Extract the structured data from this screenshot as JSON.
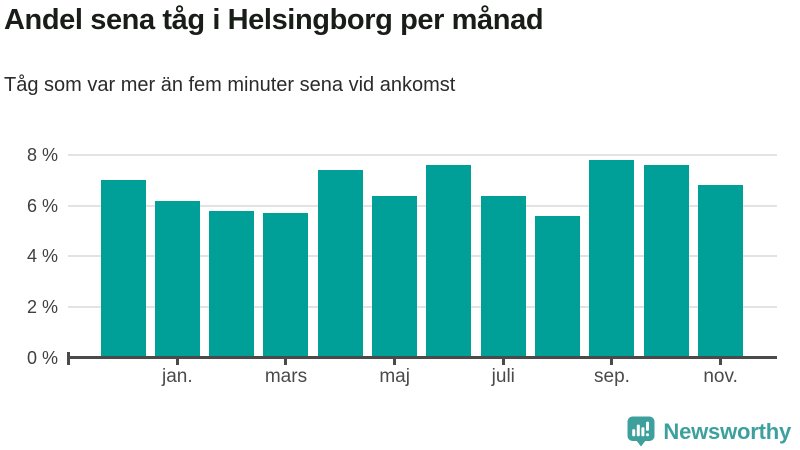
{
  "header": {
    "title": "Andel sena tåg i Helsingborg per månad",
    "subtitle": "Tåg som var mer än fem minuter sena vid ankomst"
  },
  "chart_data": {
    "type": "bar",
    "title": "Andel sena tåg i Helsingborg per månad",
    "subtitle": "Tåg som var mer än fem minuter sena vid ankomst",
    "values": [
      7.0,
      6.2,
      5.8,
      5.7,
      7.4,
      6.4,
      7.6,
      6.4,
      5.6,
      7.8,
      7.6,
      6.8
    ],
    "bar_labels": [
      "",
      "jan.",
      "",
      "mars",
      "",
      "maj",
      "",
      "juli",
      "",
      "sep.",
      "",
      "nov."
    ],
    "x_tick_labels": [
      "jan.",
      "mars",
      "maj",
      "juli",
      "sep.",
      "nov."
    ],
    "y_tick_labels": [
      "8 %",
      "6 %",
      "4 %",
      "2 %",
      "0 %"
    ],
    "y_tick_values": [
      8,
      6,
      4,
      2,
      0
    ],
    "ylim": [
      0,
      8
    ],
    "unit": "%",
    "grid": "horizontal",
    "legend": "none",
    "bar_color": "#00a099"
  },
  "branding": {
    "logo_text": "Newsworthy",
    "logo_icon": "bar-chart-exclamation-bubble-icon",
    "logo_color": "#3da09d"
  },
  "colors": {
    "bar": "#00a099",
    "gridline": "#e3e3e3",
    "axis": "#4a4a4a",
    "title_text": "#181d18",
    "subtitle_text": "#2b2b2b",
    "tick_text": "#4a4a4a",
    "brand": "#3da09d",
    "background": "#ffffff"
  }
}
